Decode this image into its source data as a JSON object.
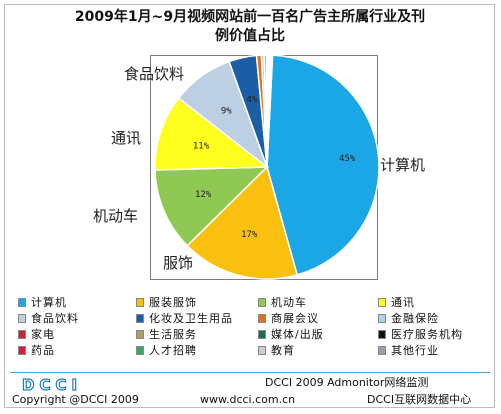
{
  "title_lines": [
    "2009年1月~9月视频网站前一百名广告主所属行业及刊",
    "例价值占比"
  ],
  "chart_data": {
    "type": "pie",
    "title": "2009年1月~9月视频网站前一百名广告主所属行业及刊例价值占比",
    "slices": [
      {
        "label": "计算机",
        "value": 45,
        "pct_label": "45%",
        "color": "#1ba7e6",
        "outer_label": "计算机"
      },
      {
        "label": "服装服饰",
        "value": 17,
        "pct_label": "17%",
        "color": "#f9c010",
        "outer_label": "服饰"
      },
      {
        "label": "机动车",
        "value": 12,
        "pct_label": "12%",
        "color": "#8fc852",
        "outer_label": "机动车"
      },
      {
        "label": "通讯",
        "value": 11,
        "pct_label": "11%",
        "color": "#ffff1f",
        "outer_label": "通讯"
      },
      {
        "label": "食品饮料",
        "value": 9,
        "pct_label": "9%",
        "color": "#bdd0e3",
        "outer_label": "食品饮料"
      },
      {
        "label": "化妆及卫生用品",
        "value": 4,
        "pct_label": "4%",
        "color": "#1a5ea6",
        "outer_label": ""
      },
      {
        "label": "商展会议",
        "value": 0.7,
        "pct_label": "",
        "color": "#e0701d",
        "outer_label": ""
      },
      {
        "label": "金融保险",
        "value": 0.4,
        "pct_label": "",
        "color": "#a7d6e8",
        "outer_label": ""
      },
      {
        "label": "家电",
        "value": 0.3,
        "pct_label": "",
        "color": "#c1282b",
        "outer_label": ""
      },
      {
        "label": "生活服务",
        "value": 0.2,
        "pct_label": "",
        "color": "#a9a064",
        "outer_label": ""
      },
      {
        "label": "媒体/出版",
        "value": 0.2,
        "pct_label": "",
        "color": "#1f6b5a",
        "outer_label": ""
      },
      {
        "label": "医疗服务机构",
        "value": 0.1,
        "pct_label": "",
        "color": "#111111",
        "outer_label": ""
      },
      {
        "label": "药品",
        "value": 0.1,
        "pct_label": "",
        "color": "#d81e3c",
        "outer_label": ""
      },
      {
        "label": "人才招聘",
        "value": 0.1,
        "pct_label": "",
        "color": "#38a86a",
        "outer_label": ""
      },
      {
        "label": "教育",
        "value": 0.1,
        "pct_label": "",
        "color": "#c9ced6",
        "outer_label": ""
      },
      {
        "label": "其他行业",
        "value": 0.1,
        "pct_label": "",
        "color": "#969fae",
        "outer_label": ""
      }
    ],
    "legend": [
      {
        "label": "计算机",
        "color": "#1ba7e6"
      },
      {
        "label": "服装服饰",
        "color": "#f9c010"
      },
      {
        "label": "机动车",
        "color": "#8fc852"
      },
      {
        "label": "通讯",
        "color": "#ffff1f"
      },
      {
        "label": "食品饮料",
        "color": "#bdd0e3"
      },
      {
        "label": "化妆及卫生用品",
        "color": "#1a5ea6"
      },
      {
        "label": "商展会议",
        "color": "#e0701d"
      },
      {
        "label": "金融保险",
        "color": "#a7d6e8"
      },
      {
        "label": "家电",
        "color": "#c1282b"
      },
      {
        "label": "生活服务",
        "color": "#a9a064"
      },
      {
        "label": "媒体/出版",
        "color": "#1f6b5a"
      },
      {
        "label": "医疗服务机构",
        "color": "#111111"
      },
      {
        "label": "药品",
        "color": "#d81e3c"
      },
      {
        "label": "人才招聘",
        "color": "#38a86a"
      },
      {
        "label": "教育",
        "color": "#c9ced6"
      },
      {
        "label": "其他行业",
        "color": "#969fae"
      }
    ],
    "legend_placement": "bottom"
  },
  "logo": {
    "text": "DCCI",
    "color": "#1a7fc4"
  },
  "footer": {
    "copyright": "Copyright @DCCI 2009",
    "website": "www.dcci.com.cn",
    "source": "DCCI 2009 Admonitor网络监测",
    "center": "DCCI互联网数据中心"
  }
}
